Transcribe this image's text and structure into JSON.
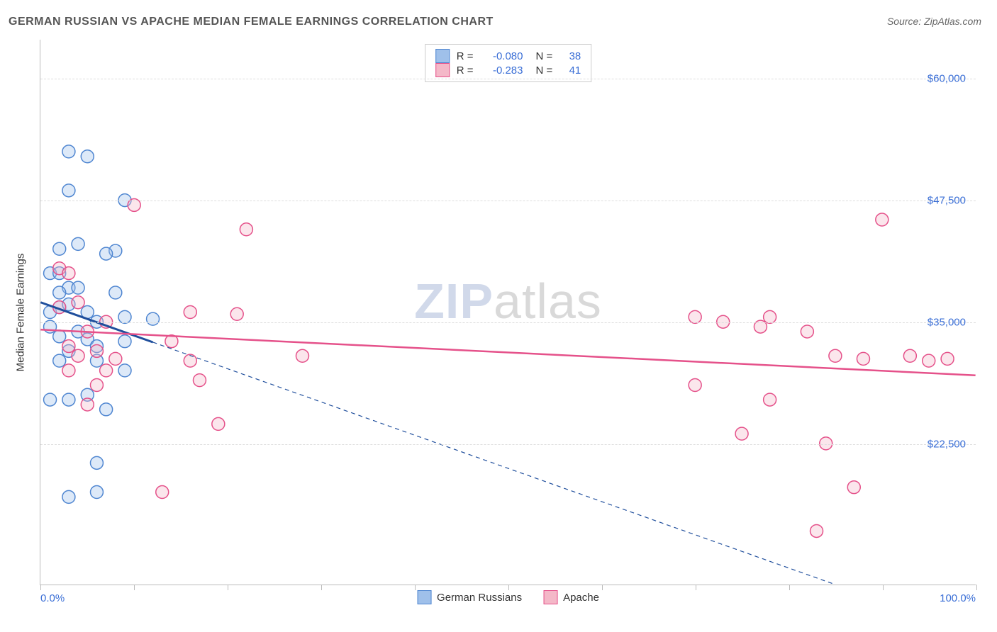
{
  "title": "GERMAN RUSSIAN VS APACHE MEDIAN FEMALE EARNINGS CORRELATION CHART",
  "source": "Source: ZipAtlas.com",
  "watermark": {
    "part1": "ZIP",
    "part2": "atlas"
  },
  "chart": {
    "type": "scatter",
    "background_color": "#ffffff",
    "grid_color": "#dddddd",
    "axis_color": "#bbbbbb",
    "xlim": [
      0,
      100
    ],
    "ylim": [
      8000,
      64000
    ],
    "x_ticks": [
      0,
      10,
      20,
      30,
      40,
      50,
      60,
      70,
      80,
      90,
      100
    ],
    "x_tick_labels_visible": {
      "0": "0.0%",
      "100": "100.0%"
    },
    "y_ticks": [
      22500,
      35000,
      47500,
      60000
    ],
    "y_tick_labels": [
      "$22,500",
      "$35,000",
      "$47,500",
      "$60,000"
    ],
    "y_axis_title": "Median Female Earnings",
    "label_fontsize": 15,
    "label_color": "#3b6fd6",
    "marker_radius": 9,
    "marker_fill_opacity": 0.35,
    "marker_stroke_width": 1.5,
    "series": [
      {
        "name": "German Russians",
        "color_fill": "#9fc0ea",
        "color_stroke": "#4f86d1",
        "R": "-0.080",
        "N": "38",
        "trend": {
          "x1": 0,
          "y1": 37000,
          "x2": 85,
          "y2": 8000,
          "solid_until_x": 12,
          "line_color": "#1f4e9c",
          "line_width": 2,
          "dash": "6,5"
        },
        "points": [
          [
            3,
            52500
          ],
          [
            5,
            52000
          ],
          [
            3,
            48500
          ],
          [
            2,
            42500
          ],
          [
            8,
            42300
          ],
          [
            4,
            43000
          ],
          [
            1,
            40000
          ],
          [
            2,
            40000
          ],
          [
            9,
            47500
          ],
          [
            3,
            38500
          ],
          [
            2,
            38000
          ],
          [
            4,
            38500
          ],
          [
            7,
            42000
          ],
          [
            8,
            38000
          ],
          [
            1,
            36000
          ],
          [
            2,
            36500
          ],
          [
            3,
            36800
          ],
          [
            5,
            36000
          ],
          [
            1,
            34500
          ],
          [
            4,
            34000
          ],
          [
            6,
            35000
          ],
          [
            2,
            33500
          ],
          [
            5,
            33200
          ],
          [
            9,
            35500
          ],
          [
            12,
            35300
          ],
          [
            3,
            32000
          ],
          [
            6,
            32500
          ],
          [
            2,
            31000
          ],
          [
            6,
            31000
          ],
          [
            9,
            33000
          ],
          [
            3,
            27000
          ],
          [
            5,
            27500
          ],
          [
            1,
            27000
          ],
          [
            9,
            30000
          ],
          [
            6,
            20500
          ],
          [
            3,
            17000
          ],
          [
            6,
            17500
          ],
          [
            7,
            26000
          ]
        ]
      },
      {
        "name": "Apache",
        "color_fill": "#f4b8c8",
        "color_stroke": "#e5518a",
        "R": "-0.283",
        "N": "41",
        "trend": {
          "x1": 0,
          "y1": 34200,
          "x2": 100,
          "y2": 29500,
          "solid_until_x": 100,
          "line_color": "#e5518a",
          "line_width": 2.5,
          "dash": null
        },
        "points": [
          [
            10,
            47000
          ],
          [
            22,
            44500
          ],
          [
            2,
            40500
          ],
          [
            3,
            40000
          ],
          [
            2,
            36500
          ],
          [
            4,
            37000
          ],
          [
            16,
            36000
          ],
          [
            21,
            35800
          ],
          [
            7,
            35000
          ],
          [
            5,
            34000
          ],
          [
            14,
            33000
          ],
          [
            3,
            32500
          ],
          [
            6,
            32000
          ],
          [
            4,
            31500
          ],
          [
            8,
            31200
          ],
          [
            16,
            31000
          ],
          [
            28,
            31500
          ],
          [
            3,
            30000
          ],
          [
            7,
            30000
          ],
          [
            6,
            28500
          ],
          [
            17,
            29000
          ],
          [
            5,
            26500
          ],
          [
            19,
            24500
          ],
          [
            13,
            17500
          ],
          [
            70,
            35500
          ],
          [
            73,
            35000
          ],
          [
            77,
            34500
          ],
          [
            78,
            35500
          ],
          [
            82,
            34000
          ],
          [
            90,
            45500
          ],
          [
            70,
            28500
          ],
          [
            78,
            27000
          ],
          [
            75,
            23500
          ],
          [
            84,
            22500
          ],
          [
            85,
            31500
          ],
          [
            88,
            31200
          ],
          [
            93,
            31500
          ],
          [
            95,
            31000
          ],
          [
            97,
            31200
          ],
          [
            87,
            18000
          ],
          [
            83,
            13500
          ]
        ]
      }
    ],
    "stats_box": {
      "rows": [
        {
          "swatch_fill": "#9fc0ea",
          "swatch_stroke": "#4f86d1",
          "R_label": "R =",
          "R_value": "-0.080",
          "N_label": "N =",
          "N_value": "38"
        },
        {
          "swatch_fill": "#f4b8c8",
          "swatch_stroke": "#e5518a",
          "R_label": "R =",
          "R_value": "-0.283",
          "N_label": "N =",
          "N_value": "41"
        }
      ]
    },
    "bottom_legend": [
      {
        "swatch_fill": "#9fc0ea",
        "swatch_stroke": "#4f86d1",
        "label": "German Russians"
      },
      {
        "swatch_fill": "#f4b8c8",
        "swatch_stroke": "#e5518a",
        "label": "Apache"
      }
    ]
  }
}
